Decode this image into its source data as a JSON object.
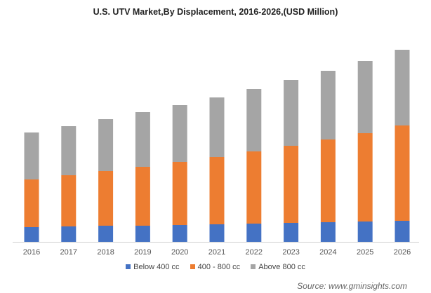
{
  "chart_data": {
    "type": "bar",
    "stacked": true,
    "title": "U.S. UTV Market,By Displacement, 2016-2026,(USD Million)",
    "xlabel": "",
    "ylabel": "",
    "y_axis_shown": false,
    "grid": false,
    "legend_position": "bottom",
    "categories": [
      "2016",
      "2017",
      "2018",
      "2019",
      "2020",
      "2021",
      "2022",
      "2023",
      "2024",
      "2025",
      "2026"
    ],
    "series": [
      {
        "name": "Below 400 cc",
        "color": "#4472C4",
        "values": [
          21,
          22,
          23,
          23,
          24,
          25,
          26,
          27,
          28,
          29,
          30
        ]
      },
      {
        "name": "400 - 800 cc",
        "color": "#ED7D31",
        "values": [
          68,
          73,
          78,
          84,
          90,
          96,
          103,
          110,
          118,
          126,
          136
        ]
      },
      {
        "name": "Above 800 cc",
        "color": "#A5A5A5",
        "values": [
          67,
          70,
          74,
          78,
          81,
          85,
          89,
          94,
          98,
          103,
          108
        ]
      }
    ],
    "ylim": [
      0,
      280
    ]
  },
  "source": "Source:  www.gminsights.com"
}
